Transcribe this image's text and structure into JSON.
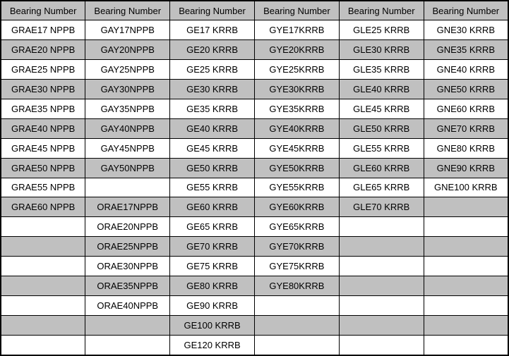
{
  "table": {
    "headers": [
      "Bearing Number",
      "Bearing Number",
      "Bearing Number",
      "Bearing Number",
      "Bearing Number",
      "Bearing Number"
    ],
    "rows": [
      [
        "GRAE17 NPPB",
        "GAY17NPPB",
        "GE17 KRRB",
        "GYE17KRRB",
        "GLE25 KRRB",
        "GNE30 KRRB"
      ],
      [
        "GRAE20 NPPB",
        "GAY20NPPB",
        "GE20 KRRB",
        "GYE20KRRB",
        "GLE30 KRRB",
        "GNE35 KRRB"
      ],
      [
        "GRAE25 NPPB",
        "GAY25NPPB",
        "GE25 KRRB",
        "GYE25KRRB",
        "GLE35 KRRB",
        "GNE40 KRRB"
      ],
      [
        "GRAE30 NPPB",
        "GAY30NPPB",
        "GE30 KRRB",
        "GYE30KRRB",
        "GLE40 KRRB",
        "GNE50 KRRB"
      ],
      [
        "GRAE35 NPPB",
        "GAY35NPPB",
        "GE35 KRRB",
        "GYE35KRRB",
        "GLE45 KRRB",
        "GNE60 KRRB"
      ],
      [
        "GRAE40 NPPB",
        "GAY40NPPB",
        "GE40 KRRB",
        "GYE40KRRB",
        "GLE50 KRRB",
        "GNE70 KRRB"
      ],
      [
        "GRAE45 NPPB",
        "GAY45NPPB",
        "GE45 KRRB",
        "GYE45KRRB",
        "GLE55 KRRB",
        "GNE80 KRRB"
      ],
      [
        "GRAE50 NPPB",
        "GAY50NPPB",
        "GE50 KRRB",
        "GYE50KRRB",
        "GLE60 KRRB",
        "GNE90 KRRB"
      ],
      [
        "GRAE55 NPPB",
        "",
        "GE55 KRRB",
        "GYE55KRRB",
        "GLE65 KRRB",
        "GNE100 KRRB"
      ],
      [
        "GRAE60 NPPB",
        "ORAE17NPPB",
        "GE60 KRRB",
        "GYE60KRRB",
        "GLE70 KRRB",
        ""
      ],
      [
        "",
        "ORAE20NPPB",
        "GE65 KRRB",
        "GYE65KRRB",
        "",
        ""
      ],
      [
        "",
        "ORAE25NPPB",
        "GE70 KRRB",
        "GYE70KRRB",
        "",
        ""
      ],
      [
        "",
        "ORAE30NPPB",
        "GE75 KRRB",
        "GYE75KRRB",
        "",
        ""
      ],
      [
        "",
        "ORAE35NPPB",
        "GE80 KRRB",
        "GYE80KRRB",
        "",
        ""
      ],
      [
        "",
        "ORAE40NPPB",
        "GE90 KRRB",
        "",
        "",
        ""
      ],
      [
        "",
        "",
        "GE100 KRRB",
        "",
        "",
        ""
      ],
      [
        "",
        "",
        "GE120 KRRB",
        "",
        "",
        ""
      ]
    ]
  },
  "colors": {
    "grid": "#000000",
    "text": "#000000",
    "row_bg": "#ffffff",
    "row_alt_bg": "#c0c0c0"
  }
}
